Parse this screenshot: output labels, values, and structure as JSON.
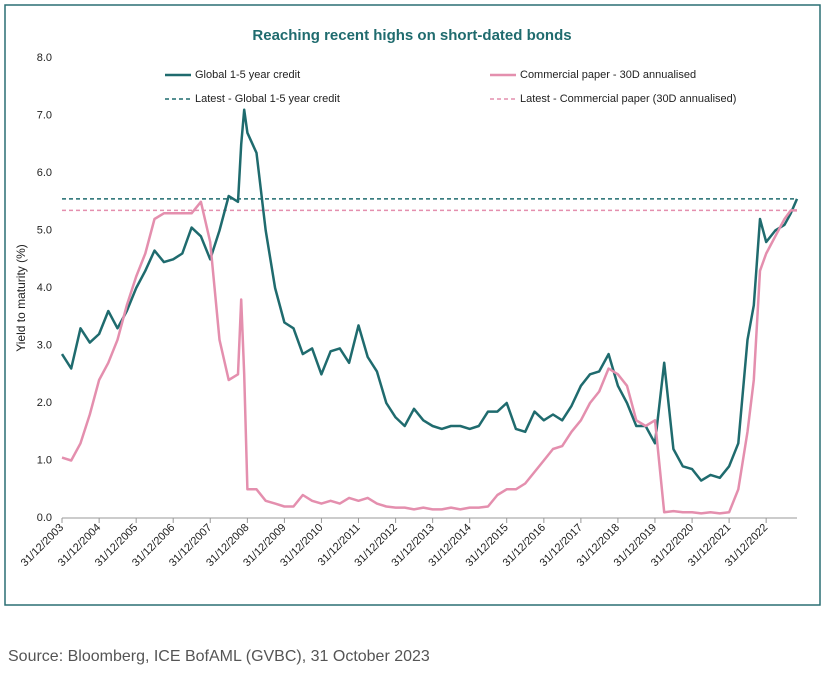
{
  "chart_data": {
    "type": "line",
    "title": "Reaching recent highs on short-dated bonds",
    "y_label": "Yield to maturity (%)",
    "source": "Source: Bloomberg, ICE BofAML (GVBC), 31 October 2023",
    "x": [
      "2003-12-31",
      "2004-03-31",
      "2004-06-30",
      "2004-09-30",
      "2004-12-31",
      "2005-03-31",
      "2005-06-30",
      "2005-09-30",
      "2005-12-31",
      "2006-03-31",
      "2006-06-30",
      "2006-09-30",
      "2006-12-31",
      "2007-03-31",
      "2007-06-30",
      "2007-09-30",
      "2007-12-31",
      "2008-03-31",
      "2008-06-30",
      "2008-09-30",
      "2008-10-31",
      "2008-11-30",
      "2008-12-31",
      "2009-03-31",
      "2009-06-30",
      "2009-09-30",
      "2009-12-31",
      "2010-03-31",
      "2010-06-30",
      "2010-09-30",
      "2010-12-31",
      "2011-03-31",
      "2011-06-30",
      "2011-09-30",
      "2011-12-31",
      "2012-03-31",
      "2012-06-30",
      "2012-09-30",
      "2012-12-31",
      "2013-03-31",
      "2013-06-30",
      "2013-09-30",
      "2013-12-31",
      "2014-03-31",
      "2014-06-30",
      "2014-09-30",
      "2014-12-31",
      "2015-03-31",
      "2015-06-30",
      "2015-09-30",
      "2015-12-31",
      "2016-03-31",
      "2016-06-30",
      "2016-09-30",
      "2016-12-31",
      "2017-03-31",
      "2017-06-30",
      "2017-09-30",
      "2017-12-31",
      "2018-03-31",
      "2018-06-30",
      "2018-09-30",
      "2018-12-31",
      "2019-03-31",
      "2019-06-30",
      "2019-09-30",
      "2019-12-31",
      "2020-03-31",
      "2020-06-30",
      "2020-09-30",
      "2020-12-31",
      "2021-03-31",
      "2021-06-30",
      "2021-09-30",
      "2021-12-31",
      "2022-03-31",
      "2022-06-30",
      "2022-08-31",
      "2022-10-31",
      "2022-12-31",
      "2023-03-31",
      "2023-06-30",
      "2023-08-31",
      "2023-10-31"
    ],
    "series": [
      {
        "name": "Global 1-5 year credit",
        "color": "#1f6b6e",
        "values": [
          2.85,
          2.6,
          3.3,
          3.05,
          3.2,
          3.6,
          3.3,
          3.6,
          4.0,
          4.3,
          4.65,
          4.45,
          4.5,
          4.6,
          5.05,
          4.9,
          4.5,
          5.0,
          5.6,
          5.5,
          6.5,
          7.1,
          6.7,
          6.35,
          5.0,
          4.0,
          3.4,
          3.3,
          2.85,
          2.95,
          2.5,
          2.9,
          2.95,
          2.7,
          3.35,
          2.8,
          2.55,
          2.0,
          1.75,
          1.6,
          1.9,
          1.7,
          1.6,
          1.55,
          1.6,
          1.6,
          1.55,
          1.6,
          1.85,
          1.85,
          2.0,
          1.55,
          1.5,
          1.85,
          1.7,
          1.8,
          1.7,
          1.95,
          2.3,
          2.5,
          2.55,
          2.85,
          2.3,
          2.0,
          1.6,
          1.6,
          1.3,
          2.7,
          1.2,
          0.9,
          0.85,
          0.65,
          0.75,
          0.7,
          0.9,
          1.3,
          3.1,
          3.7,
          5.2,
          4.8,
          5.0,
          5.1,
          5.3,
          5.55
        ]
      },
      {
        "name": "Commercial paper - 30D annualised",
        "color": "#e48fae",
        "values": [
          1.05,
          1.0,
          1.3,
          1.8,
          2.4,
          2.7,
          3.1,
          3.7,
          4.2,
          4.6,
          5.2,
          5.3,
          5.3,
          5.3,
          5.3,
          5.5,
          4.8,
          3.1,
          2.4,
          2.5,
          3.8,
          2.5,
          0.5,
          0.5,
          0.3,
          0.25,
          0.2,
          0.2,
          0.4,
          0.3,
          0.25,
          0.3,
          0.25,
          0.35,
          0.3,
          0.35,
          0.25,
          0.2,
          0.18,
          0.18,
          0.15,
          0.18,
          0.15,
          0.15,
          0.18,
          0.15,
          0.18,
          0.18,
          0.2,
          0.4,
          0.5,
          0.5,
          0.6,
          0.8,
          1.0,
          1.2,
          1.25,
          1.5,
          1.7,
          2.0,
          2.2,
          2.6,
          2.5,
          2.3,
          1.7,
          1.6,
          1.7,
          0.1,
          0.12,
          0.1,
          0.1,
          0.08,
          0.1,
          0.08,
          0.1,
          0.5,
          1.5,
          2.4,
          4.3,
          4.6,
          4.9,
          5.2,
          5.35,
          5.35
        ]
      }
    ],
    "reference_lines": [
      {
        "name": "Latest - Global 1-5 year credit",
        "color": "#1f6b6e",
        "value": 5.55
      },
      {
        "name": "Latest - Commercial paper (30D annualised)",
        "color": "#e48fae",
        "value": 5.35
      }
    ],
    "xlim": [
      "2003-12-31",
      "2023-10-31"
    ],
    "xticks": [
      {
        "value": "2003-12-31",
        "label": "31/12/2003"
      },
      {
        "value": "2004-12-31",
        "label": "31/12/2004"
      },
      {
        "value": "2005-12-31",
        "label": "31/12/2005"
      },
      {
        "value": "2006-12-31",
        "label": "31/12/2006"
      },
      {
        "value": "2007-12-31",
        "label": "31/12/2007"
      },
      {
        "value": "2008-12-31",
        "label": "31/12/2008"
      },
      {
        "value": "2009-12-31",
        "label": "31/12/2009"
      },
      {
        "value": "2010-12-31",
        "label": "31/12/2010"
      },
      {
        "value": "2011-12-31",
        "label": "31/12/2011"
      },
      {
        "value": "2012-12-31",
        "label": "31/12/2012"
      },
      {
        "value": "2013-12-31",
        "label": "31/12/2013"
      },
      {
        "value": "2014-12-31",
        "label": "31/12/2014"
      },
      {
        "value": "2015-12-31",
        "label": "31/12/2015"
      },
      {
        "value": "2016-12-31",
        "label": "31/12/2016"
      },
      {
        "value": "2017-12-31",
        "label": "31/12/2017"
      },
      {
        "value": "2018-12-31",
        "label": "31/12/2018"
      },
      {
        "value": "2019-12-31",
        "label": "31/12/2019"
      },
      {
        "value": "2020-12-31",
        "label": "31/12/2020"
      },
      {
        "value": "2021-12-31",
        "label": "31/12/2021"
      },
      {
        "value": "2022-12-31",
        "label": "31/12/2022"
      }
    ],
    "ylim": [
      0,
      8
    ],
    "yticks": [
      {
        "value": 0,
        "label": "0.0"
      },
      {
        "value": 1,
        "label": "1.0"
      },
      {
        "value": 2,
        "label": "2.0"
      },
      {
        "value": 3,
        "label": "3.0"
      },
      {
        "value": 4,
        "label": "4.0"
      },
      {
        "value": 5,
        "label": "5.0"
      },
      {
        "value": 6,
        "label": "6.0"
      },
      {
        "value": 7,
        "label": "7.0"
      },
      {
        "value": 8,
        "label": "8.0"
      }
    ],
    "grid": false
  }
}
